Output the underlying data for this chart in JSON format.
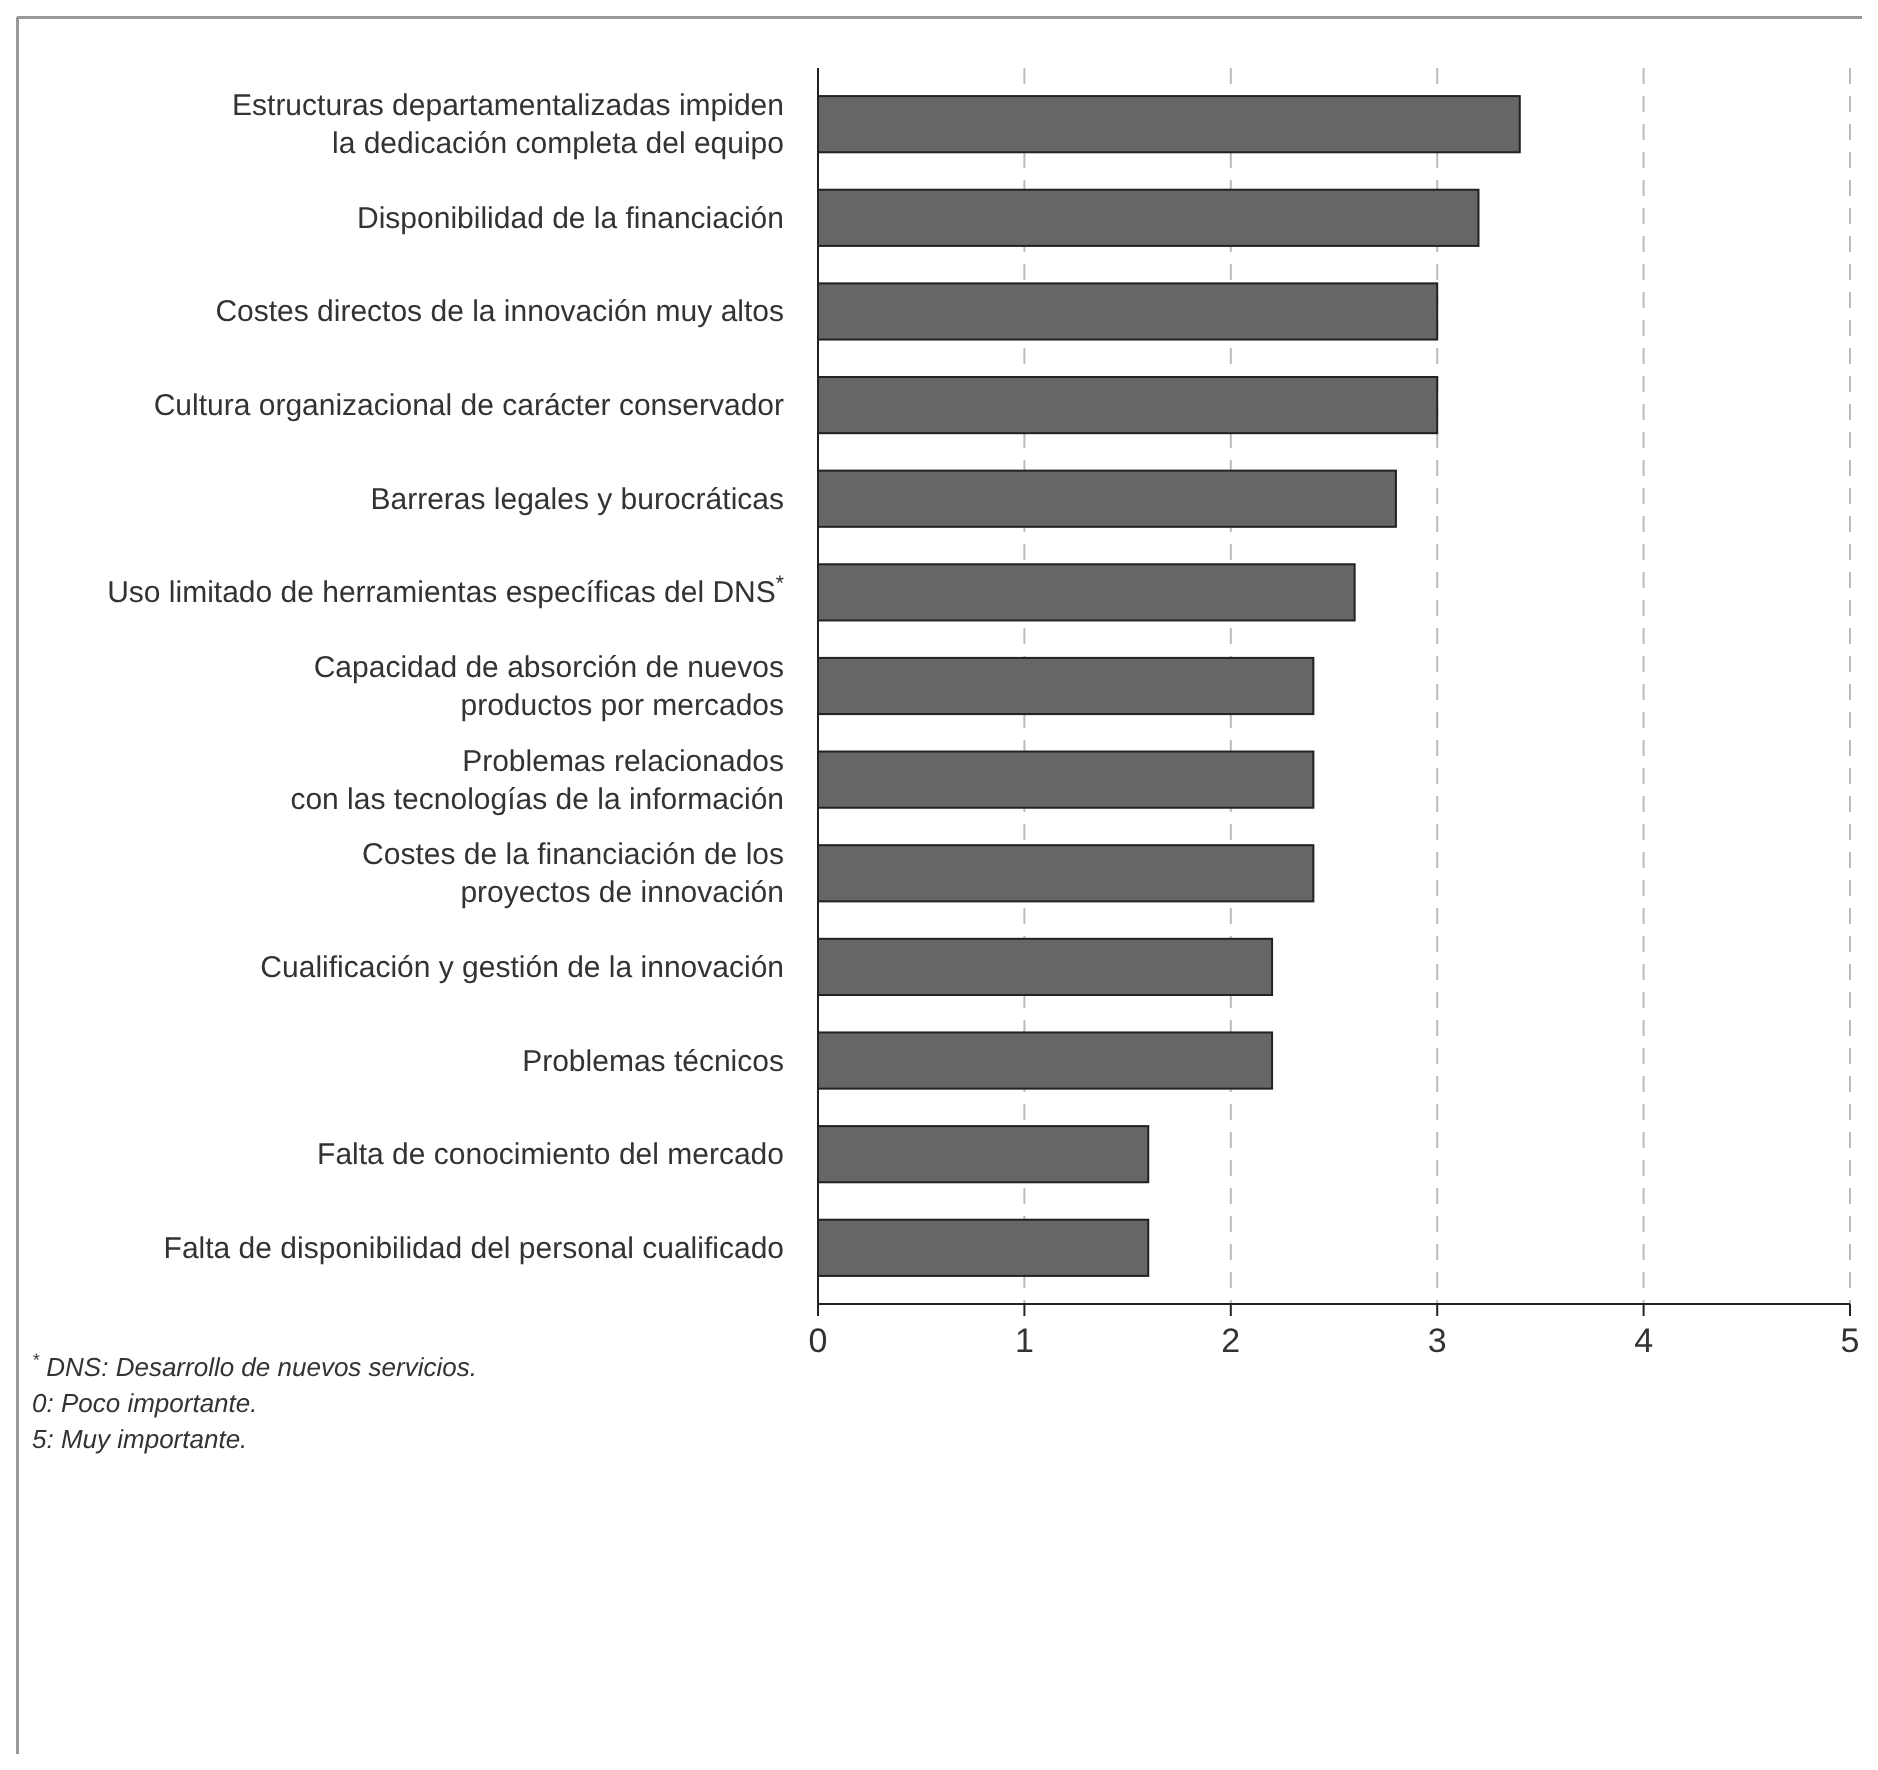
{
  "chart_data": {
    "type": "bar",
    "orientation": "horizontal",
    "categories": [
      "Estructuras departamentalizadas impiden\nla dedicación completa del equipo",
      "Disponibilidad de la financiación",
      "Costes directos de la innovación muy altos",
      "Cultura organizacional de carácter conservador",
      "Barreras legales y burocráticas",
      "Uso limitado de herramientas específicas del DNS$^{*}$",
      "Capacidad de absorción de nuevos\nproductos por mercados",
      "Problemas relacionados\ncon las tecnologías de la información",
      "Costes de la financiación de los\nproyectos de innovación",
      "Cualificación y gestión de la innovación",
      "Problemas técnicos",
      "Falta de conocimiento del mercado",
      "Falta de disponibilidad del personal cualificado"
    ],
    "values": [
      3.4,
      3.2,
      3.0,
      3.0,
      2.8,
      2.6,
      2.4,
      2.4,
      2.4,
      2.2,
      2.2,
      1.6,
      1.6
    ],
    "color": "#666666",
    "xlim": [
      0,
      5
    ],
    "xticks": [
      0,
      1,
      2,
      3,
      4,
      5
    ],
    "grid": "x",
    "annotations": [
      "$^{*}$ DNS: Desarrollo de nuevos servicios.",
      "0: Poco importante.",
      "5: Muy importante."
    ]
  }
}
